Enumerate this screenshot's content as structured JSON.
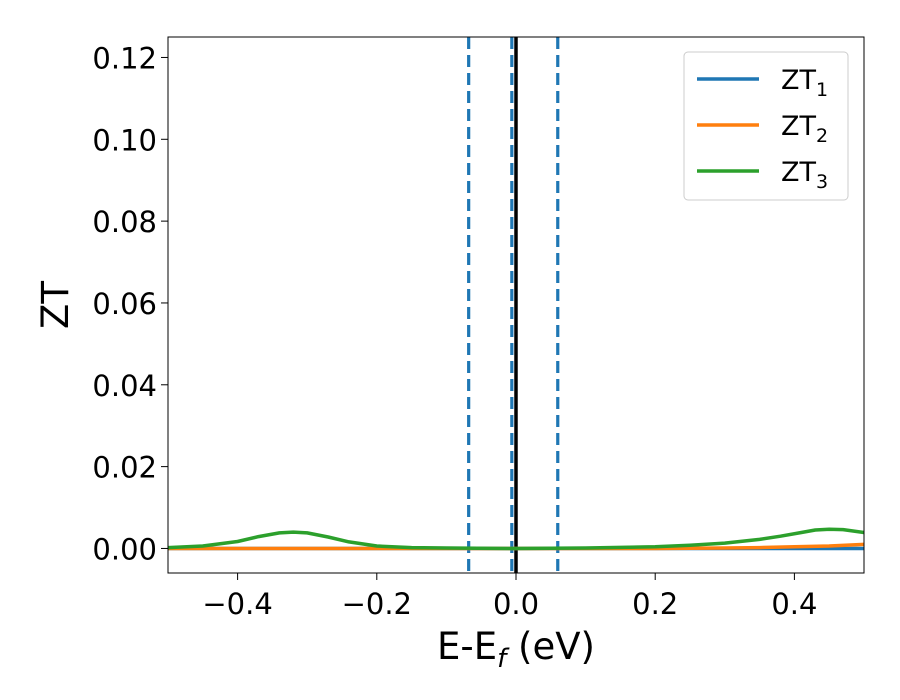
{
  "chart_data": {
    "type": "line",
    "xlabel": {
      "main": "E-E",
      "sub": "f",
      "suffix": " (eV)"
    },
    "ylabel": "ZT",
    "xlim": [
      -0.5,
      0.5
    ],
    "ylim": [
      -0.006,
      0.125
    ],
    "grid": false,
    "legend_position": "top-right",
    "x_ticks": [
      {
        "value": -0.4,
        "label": "−0.4"
      },
      {
        "value": -0.2,
        "label": "−0.2"
      },
      {
        "value": 0.0,
        "label": "0.0"
      },
      {
        "value": 0.2,
        "label": "0.2"
      },
      {
        "value": 0.4,
        "label": "0.4"
      }
    ],
    "y_ticks": [
      {
        "value": 0.0,
        "label": "0.00"
      },
      {
        "value": 0.02,
        "label": "0.02"
      },
      {
        "value": 0.04,
        "label": "0.04"
      },
      {
        "value": 0.06,
        "label": "0.06"
      },
      {
        "value": 0.08,
        "label": "0.08"
      },
      {
        "value": 0.1,
        "label": "0.10"
      },
      {
        "value": 0.12,
        "label": "0.12"
      }
    ],
    "vlines": [
      {
        "x": -0.068,
        "style": "dashed",
        "color": "#1f77b4"
      },
      {
        "x": -0.006,
        "style": "dashed",
        "color": "#1f77b4"
      },
      {
        "x": 0.0,
        "style": "solid",
        "color": "#000000"
      },
      {
        "x": 0.06,
        "style": "dashed",
        "color": "#1f77b4"
      }
    ],
    "series": [
      {
        "name": "ZT",
        "sub": "1",
        "color": "#1f77b4",
        "x": [
          -0.5,
          -0.4,
          -0.3,
          -0.2,
          -0.1,
          0.0,
          0.1,
          0.2,
          0.3,
          0.4,
          0.5
        ],
        "y": [
          0.0,
          0.0,
          0.0,
          0.0,
          0.0,
          0.0,
          0.0,
          0.0,
          0.0,
          0.0,
          0.0
        ]
      },
      {
        "name": "ZT",
        "sub": "2",
        "color": "#ff7f0e",
        "x": [
          -0.5,
          -0.4,
          -0.3,
          -0.2,
          -0.1,
          0.0,
          0.1,
          0.2,
          0.3,
          0.35,
          0.4,
          0.45,
          0.5
        ],
        "y": [
          0.0,
          0.0,
          0.0,
          0.0,
          0.0,
          0.0,
          0.0,
          0.0,
          0.0001,
          0.0002,
          0.0004,
          0.0006,
          0.001
        ]
      },
      {
        "name": "ZT",
        "sub": "3",
        "color": "#2ca02c",
        "x": [
          -0.5,
          -0.45,
          -0.4,
          -0.37,
          -0.34,
          -0.32,
          -0.3,
          -0.27,
          -0.24,
          -0.2,
          -0.15,
          -0.1,
          0.0,
          0.1,
          0.2,
          0.25,
          0.3,
          0.35,
          0.38,
          0.41,
          0.43,
          0.45,
          0.47,
          0.5
        ],
        "y": [
          0.0002,
          0.0006,
          0.0017,
          0.0029,
          0.0038,
          0.004,
          0.0038,
          0.0028,
          0.0016,
          0.0006,
          0.0002,
          0.0001,
          0.0,
          0.0001,
          0.0004,
          0.0008,
          0.0013,
          0.0022,
          0.003,
          0.0039,
          0.0045,
          0.0047,
          0.0046,
          0.0039
        ]
      }
    ]
  }
}
